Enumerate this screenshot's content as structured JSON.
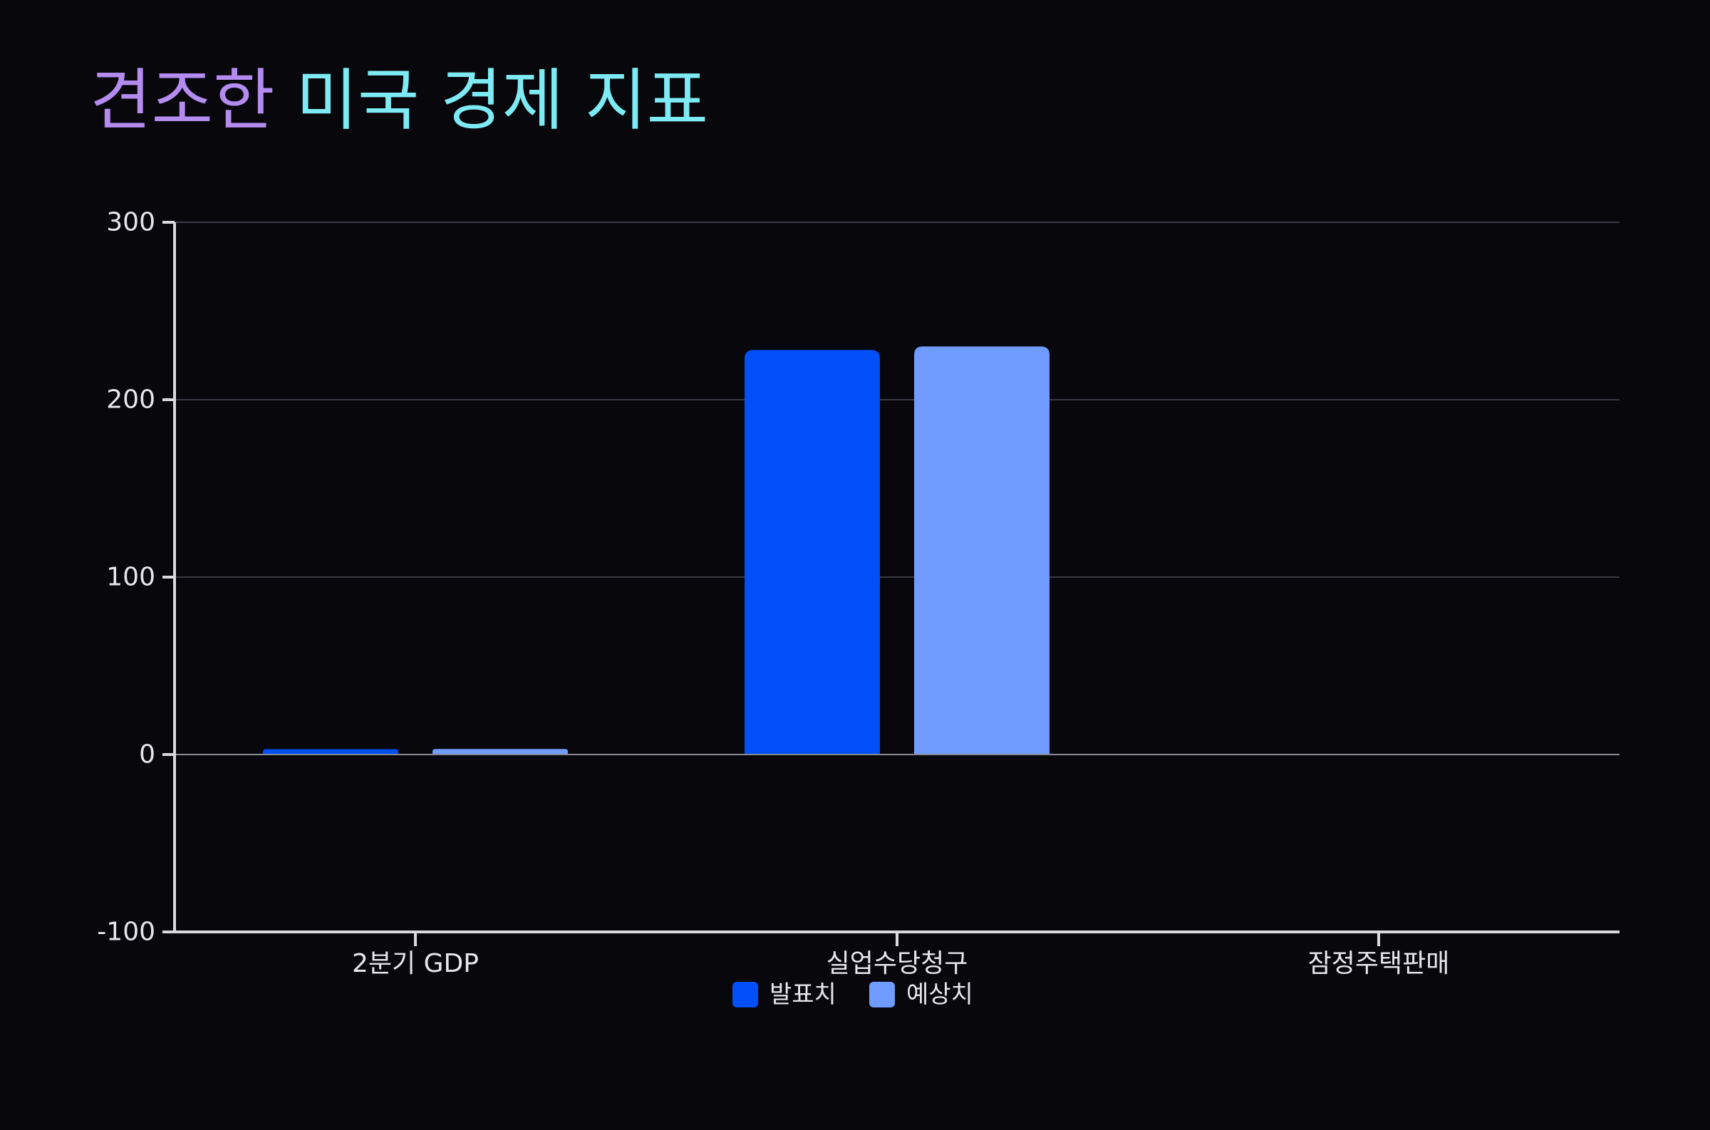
{
  "title": {
    "accent": "견조한",
    "main": "미국 경제 지표"
  },
  "colors": {
    "background": "#07070c",
    "title_accent": "#b48cf0",
    "title_main": "#7eeaf4",
    "axis": "#d9d9de",
    "grid": "#3a3a42",
    "zero_line": "#8a8a92",
    "text": "#e6e6ec"
  },
  "chart_data": {
    "type": "bar",
    "title": "견조한 미국 경제 지표",
    "categories": [
      "2분기 GDP",
      "실업수당청구",
      "잠정주택판매"
    ],
    "series": [
      {
        "name": "발표치",
        "color": "#004ff7",
        "values": [
          3.0,
          228,
          0.2
        ]
      },
      {
        "name": "예상치",
        "color": "#6f9cfe",
        "values": [
          3.1,
          230,
          0.0
        ]
      }
    ],
    "ylim": [
      -100,
      300
    ],
    "yticks": [
      -100,
      0,
      100,
      200,
      300
    ],
    "grid": true,
    "legend": "bottom-center",
    "xlabel": "",
    "ylabel": ""
  }
}
